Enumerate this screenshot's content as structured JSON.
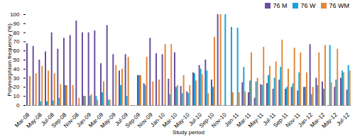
{
  "chart_data": {
    "type": "bar",
    "x_label": "Study period",
    "y_label": "Polymorphism frequency (%)",
    "categories": [
      "Mar-08",
      null,
      "May-08",
      null,
      "Jul-08",
      null,
      "Sep-08",
      null,
      "Nov-08",
      null,
      "Jan-09",
      null,
      "Mar-09",
      null,
      "May-09",
      null,
      "Jul-09",
      null,
      "Sep-09",
      null,
      "Nov-09",
      null,
      "Jan-10",
      null,
      "Mar-10",
      null,
      "May-10",
      null,
      "Jul-10",
      null,
      "Sep-10",
      null,
      "Nov-10",
      null,
      "Jan-11",
      null,
      "Mar-11",
      null,
      "May-11",
      null,
      "Jul-11",
      null,
      "Sep-11",
      null,
      "Nov-11",
      null,
      "Jan-12",
      null,
      "Mar-12",
      null,
      "May-12",
      null,
      "Jul-12"
    ],
    "series": [
      {
        "name": "76 M",
        "color": "#6a4f9c",
        "values": [
          68,
          65,
          50,
          59,
          80,
          62,
          74,
          77,
          93,
          80,
          80,
          82,
          46,
          88,
          56,
          38,
          56,
          null,
          33,
          24,
          74,
          57,
          56,
          29,
          58,
          21,
          15,
          36,
          44,
          50,
          28,
          100,
          0,
          0,
          0,
          25,
          14,
          8,
          23,
          24,
          18,
          28,
          18,
          20,
          16,
          20,
          67,
          30,
          26,
          0,
          20,
          30,
          17
        ]
      },
      {
        "name": "76 W",
        "color": "#1aa3d9",
        "values": [
          0,
          0,
          4,
          4,
          5,
          8,
          22,
          0,
          0,
          10,
          10,
          10,
          14,
          6,
          0,
          22,
          10,
          null,
          33,
          22,
          0,
          0,
          0,
          12,
          20,
          13,
          13,
          35,
          40,
          38,
          20,
          0,
          100,
          86,
          85,
          42,
          27,
          26,
          22,
          33,
          30,
          42,
          20,
          24,
          36,
          20,
          12,
          22,
          18,
          66,
          28,
          38,
          44
        ]
      },
      {
        "name": "76 WM",
        "color": "#e0883a",
        "values": [
          32,
          35,
          43,
          38,
          35,
          23,
          22,
          22,
          8,
          10,
          12,
          6,
          26,
          6,
          44,
          40,
          53,
          null,
          33,
          53,
          26,
          28,
          67,
          67,
          22,
          33,
          22,
          27,
          34,
          13,
          75,
          100,
          0,
          14,
          14,
          15,
          58,
          30,
          64,
          43,
          48,
          72,
          40,
          63,
          58,
          36,
          20,
          58,
          66,
          25,
          62,
          36,
          38
        ]
      }
    ],
    "ylim": [
      0,
      100
    ],
    "yticks": [
      0,
      10,
      20,
      30,
      40,
      50,
      60,
      70,
      80,
      90,
      100
    ],
    "grid": false,
    "legend": "top-right"
  }
}
